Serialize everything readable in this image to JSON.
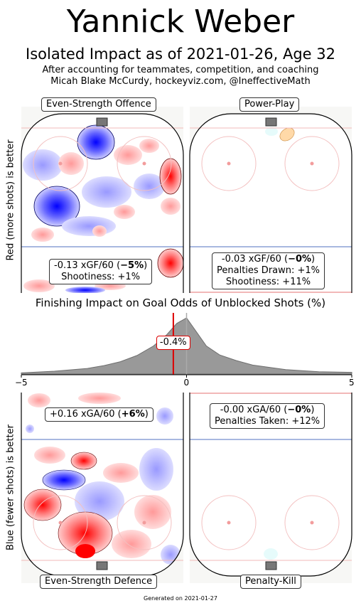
{
  "title": "Yannick Weber",
  "subtitle": "Isolated Impact as of 2021-01-26, Age 32",
  "note_line1": "After accounting for teammates, competition, and coaching",
  "note_line2": "Micah Blake McCurdy, hockeyviz.com, @IneffectiveMath",
  "ylabel_top": "Red (more shots) is better",
  "ylabel_bottom": "Blue (fewer shots) is better",
  "panels": {
    "es_offence": {
      "label": "Even-Strength Offence",
      "stat1": "-0.13 xGF/60 (",
      "stat1_bold": "−5%",
      "stat1_end": ")",
      "stat2": "Shootiness: +1%"
    },
    "power_play": {
      "label": "Power-Play",
      "stat1": "-0.03 xGF/60 (",
      "stat1_bold": "−0%",
      "stat1_end": ")",
      "stat2": "Penalties Drawn: +1%",
      "stat3": "Shootiness: +11%"
    },
    "es_defence": {
      "label": "Even-Strength Defence",
      "stat1": "+0.16 xGA/60 (",
      "stat1_bold": "+6%",
      "stat1_end": ")"
    },
    "penalty_kill": {
      "label": "Penalty-Kill",
      "stat1": "-0.00 xGA/60 (",
      "stat1_bold": "−0%",
      "stat1_end": ")",
      "stat2": "Penalties Taken: +12%"
    }
  },
  "chart_data": {
    "type": "area",
    "title": "Finishing Impact on Goal Odds of Unblocked Shots (%)",
    "xlim": [
      -5,
      5
    ],
    "x_ticks": [
      "−5",
      "0",
      "5"
    ],
    "marker_value": -0.4,
    "marker_label": "-0.4%",
    "x": [
      -5,
      -4,
      -3,
      -2.5,
      -2,
      -1.5,
      -1,
      -0.6,
      -0.3,
      0,
      0.3,
      0.6,
      1,
      1.5,
      2,
      3,
      4,
      5
    ],
    "density": [
      0.02,
      0.05,
      0.1,
      0.15,
      0.22,
      0.33,
      0.5,
      0.7,
      0.9,
      1.0,
      0.75,
      0.5,
      0.34,
      0.24,
      0.16,
      0.08,
      0.04,
      0.03
    ],
    "colors": {
      "fill": "#999999",
      "marker": "#dd0000",
      "zero_line": "#aaaaaa"
    }
  },
  "footer": "Generated on 2021-01-27"
}
